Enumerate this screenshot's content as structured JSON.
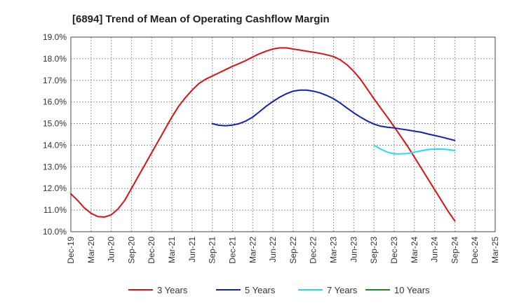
{
  "chart_data": {
    "type": "line",
    "title": "[6894]  Trend of Mean of Operating Cashflow Margin",
    "xlabel": "",
    "ylabel": "",
    "x_tick_labels": [
      "Dec-19",
      "Mar-20",
      "Jun-20",
      "Sep-20",
      "Dec-20",
      "Mar-21",
      "Jun-21",
      "Sep-21",
      "Dec-21",
      "Mar-22",
      "Jun-22",
      "Sep-22",
      "Dec-22",
      "Mar-23",
      "Jun-23",
      "Sep-23",
      "Dec-23",
      "Mar-24",
      "Jun-24",
      "Sep-24",
      "Dec-24",
      "Mar-25"
    ],
    "y_tick_labels": [
      "10.0%",
      "11.0%",
      "12.0%",
      "13.0%",
      "14.0%",
      "15.0%",
      "16.0%",
      "17.0%",
      "18.0%",
      "19.0%"
    ],
    "ylim": [
      10.0,
      19.0
    ],
    "grid": true,
    "legend_position": "bottom",
    "series": [
      {
        "name": "3 Years",
        "color": "#dd1111",
        "x": [
          "Dec-19",
          "Jan-20",
          "Feb-20",
          "Mar-20",
          "Apr-20",
          "May-20",
          "Jun-20",
          "Jul-20",
          "Aug-20",
          "Sep-20",
          "Oct-20",
          "Nov-20",
          "Dec-20",
          "Jan-21",
          "Feb-21",
          "Mar-21",
          "Apr-21",
          "May-21",
          "Jun-21",
          "Jul-21",
          "Aug-21",
          "Sep-21",
          "Oct-21",
          "Nov-21",
          "Dec-21",
          "Jan-22",
          "Feb-22",
          "Mar-22",
          "Apr-22",
          "May-22",
          "Jun-22",
          "Jul-22",
          "Aug-22",
          "Sep-22",
          "Oct-22",
          "Nov-22",
          "Dec-22",
          "Jan-23",
          "Feb-23",
          "Mar-23",
          "Apr-23",
          "May-23",
          "Jun-23",
          "Jul-23",
          "Aug-23",
          "Sep-23",
          "Oct-23",
          "Nov-23",
          "Dec-23",
          "Jan-24",
          "Feb-24",
          "Mar-24",
          "Apr-24",
          "May-24",
          "Jun-24",
          "Jul-24",
          "Aug-24",
          "Sep-24"
        ],
        "values": [
          11.75,
          11.45,
          11.1,
          10.85,
          10.7,
          10.68,
          10.78,
          11.05,
          11.45,
          12.0,
          12.55,
          13.1,
          13.65,
          14.2,
          14.75,
          15.3,
          15.8,
          16.2,
          16.55,
          16.85,
          17.05,
          17.2,
          17.35,
          17.5,
          17.65,
          17.78,
          17.92,
          18.08,
          18.23,
          18.35,
          18.45,
          18.5,
          18.5,
          18.45,
          18.4,
          18.35,
          18.3,
          18.25,
          18.18,
          18.1,
          17.95,
          17.72,
          17.42,
          17.05,
          16.6,
          16.15,
          15.72,
          15.3,
          14.85,
          14.4,
          13.95,
          13.45,
          12.95,
          12.45,
          11.95,
          11.45,
          10.95,
          10.5
        ],
        "_note": ""
      },
      {
        "name": "5 Years",
        "color": "#1122bb",
        "x": [
          "Sep-21",
          "Oct-21",
          "Nov-21",
          "Dec-21",
          "Jan-22",
          "Feb-22",
          "Mar-22",
          "Apr-22",
          "May-22",
          "Jun-22",
          "Jul-22",
          "Aug-22",
          "Sep-22",
          "Oct-22",
          "Nov-22",
          "Dec-22",
          "Jan-23",
          "Feb-23",
          "Mar-23",
          "Apr-23",
          "May-23",
          "Jun-23",
          "Jul-23",
          "Aug-23",
          "Sep-23",
          "Oct-23",
          "Nov-23",
          "Dec-23",
          "Jan-24",
          "Feb-24",
          "Mar-24",
          "Apr-24",
          "May-24",
          "Jun-24",
          "Jul-24",
          "Aug-24",
          "Sep-24"
        ],
        "values": [
          15.0,
          14.92,
          14.9,
          14.93,
          15.0,
          15.12,
          15.3,
          15.55,
          15.8,
          16.02,
          16.22,
          16.38,
          16.5,
          16.55,
          16.55,
          16.5,
          16.42,
          16.3,
          16.15,
          15.95,
          15.72,
          15.5,
          15.3,
          15.12,
          14.98,
          14.88,
          14.83,
          14.8,
          14.75,
          14.7,
          14.65,
          14.6,
          14.52,
          14.45,
          14.38,
          14.3,
          14.22
        ]
      },
      {
        "name": "7 Years",
        "color": "#22ddee",
        "x": [
          "Sep-23",
          "Oct-23",
          "Nov-23",
          "Dec-23",
          "Jan-24",
          "Feb-24",
          "Mar-24",
          "Apr-24",
          "May-24",
          "Jun-24",
          "Jul-24",
          "Aug-24",
          "Sep-24"
        ],
        "values": [
          14.0,
          13.82,
          13.68,
          13.6,
          13.6,
          13.62,
          13.68,
          13.74,
          13.8,
          13.82,
          13.82,
          13.8,
          13.75
        ]
      },
      {
        "name": "10 Years",
        "color": "#228822",
        "x": [],
        "values": []
      }
    ]
  }
}
